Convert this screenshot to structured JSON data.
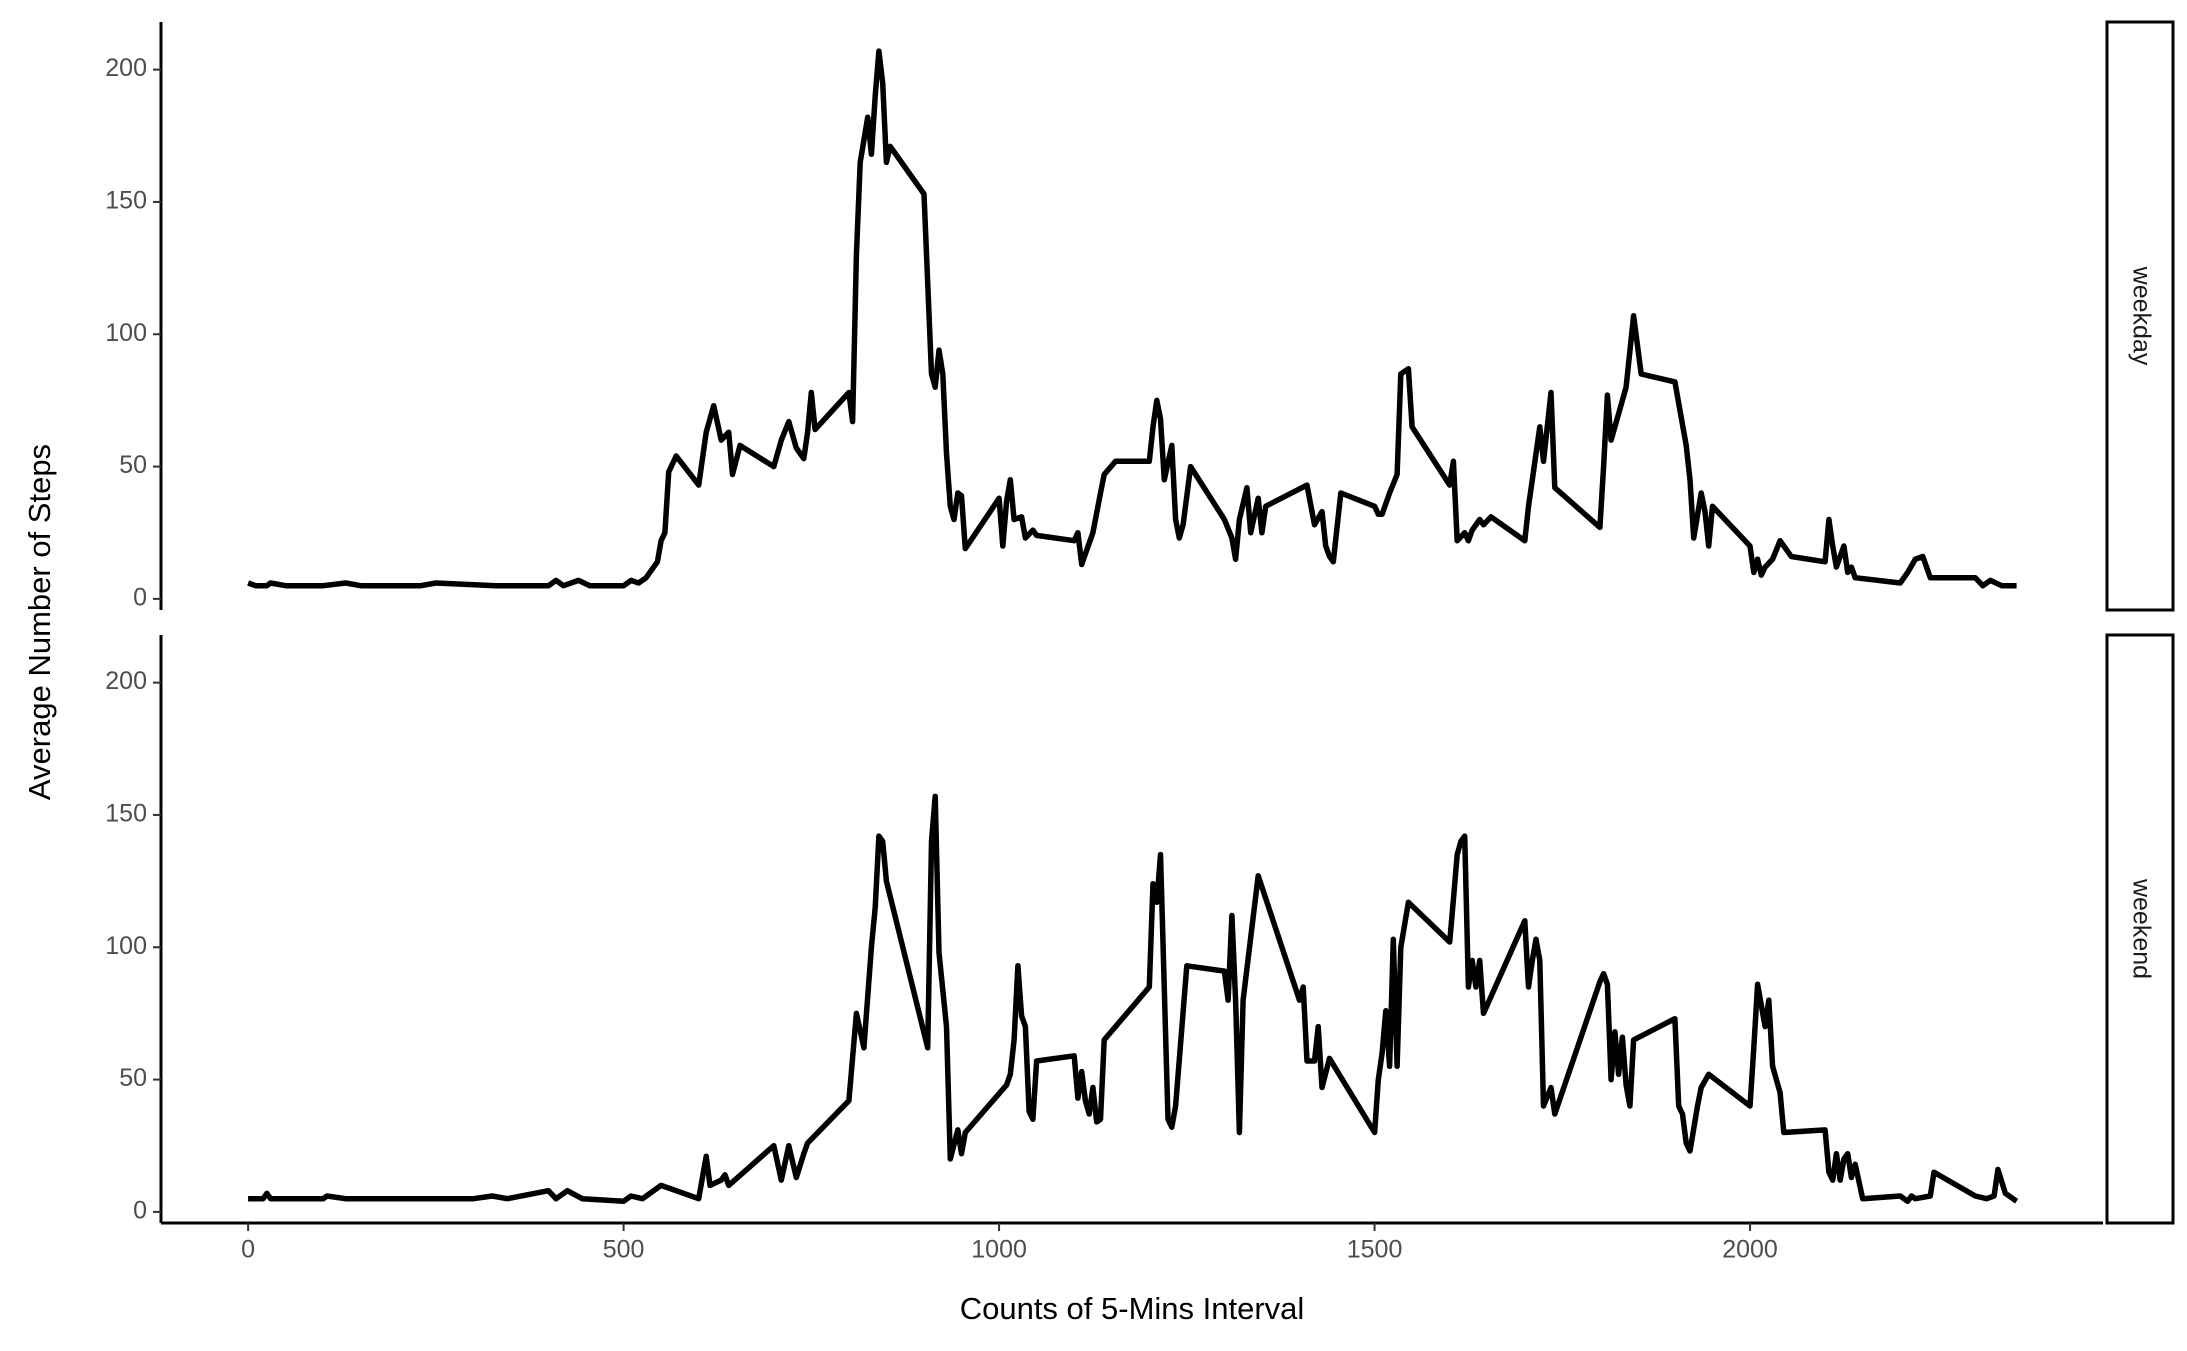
{
  "chart_data": {
    "type": "line",
    "x_label": "Counts of 5-Mins Interval",
    "y_label": "Average Number of Steps",
    "xlim": [
      -116,
      2470
    ],
    "xticks": [
      0,
      500,
      1000,
      1500,
      2000
    ],
    "ylim": [
      -4.2,
      218
    ],
    "yticks": [
      0,
      50,
      100,
      150,
      200
    ],
    "series": [
      {
        "name": "weekday",
        "color": "#000000",
        "x": [
          0,
          10,
          25,
          30,
          50,
          100,
          130,
          150,
          200,
          230,
          250,
          330,
          345,
          400,
          410,
          420,
          440,
          455,
          500,
          510,
          520,
          530,
          545,
          550,
          555,
          560,
          570,
          600,
          610,
          620,
          630,
          640,
          645,
          655,
          700,
          710,
          720,
          730,
          740,
          745,
          750,
          755,
          800,
          805,
          810,
          815,
          825,
          830,
          835,
          840,
          845,
          850,
          855,
          900,
          910,
          915,
          920,
          925,
          930,
          935,
          940,
          945,
          950,
          955,
          1000,
          1005,
          1010,
          1015,
          1020,
          1030,
          1035,
          1045,
          1050,
          1100,
          1105,
          1110,
          1115,
          1125,
          1135,
          1140,
          1155,
          1200,
          1205,
          1210,
          1215,
          1220,
          1230,
          1235,
          1240,
          1245,
          1255,
          1300,
          1310,
          1315,
          1320,
          1330,
          1335,
          1345,
          1350,
          1355,
          1410,
          1420,
          1430,
          1435,
          1440,
          1445,
          1455,
          1500,
          1505,
          1510,
          1520,
          1530,
          1535,
          1545,
          1550,
          1600,
          1605,
          1610,
          1620,
          1625,
          1630,
          1640,
          1645,
          1655,
          1700,
          1705,
          1710,
          1720,
          1725,
          1735,
          1740,
          1800,
          1805,
          1810,
          1815,
          1830,
          1835,
          1845,
          1855,
          1900,
          1915,
          1920,
          1925,
          1935,
          1940,
          1945,
          1950,
          2000,
          2005,
          2010,
          2015,
          2020,
          2030,
          2040,
          2050,
          2055,
          2100,
          2105,
          2110,
          2115,
          2125,
          2130,
          2135,
          2140,
          2200,
          2210,
          2220,
          2230,
          2240,
          2300,
          2310,
          2320,
          2335,
          2355
        ],
        "values": [
          6,
          5,
          5,
          6,
          5,
          5,
          6,
          5,
          5,
          5,
          6,
          5,
          5,
          5,
          7,
          5,
          7,
          5,
          5,
          7,
          6,
          8,
          14,
          22,
          25,
          48,
          54,
          43,
          63,
          73,
          60,
          63,
          47,
          58,
          50,
          60,
          67,
          57,
          53,
          63,
          78,
          64,
          78,
          67,
          130,
          165,
          182,
          168,
          190,
          207,
          195,
          165,
          171,
          153,
          85,
          80,
          94,
          85,
          55,
          35,
          30,
          40,
          39,
          19,
          38,
          20,
          37,
          45,
          30,
          31,
          23,
          26,
          24,
          22,
          25,
          13,
          17,
          25,
          40,
          47,
          52,
          52,
          65,
          75,
          68,
          45,
          58,
          30,
          23,
          28,
          50,
          30,
          23,
          15,
          30,
          42,
          25,
          38,
          25,
          35,
          43,
          28,
          33,
          20,
          16,
          14,
          40,
          35,
          32,
          32,
          40,
          47,
          85,
          87,
          65,
          43,
          52,
          22,
          25,
          22,
          26,
          30,
          28,
          31,
          22,
          35,
          45,
          65,
          52,
          78,
          42,
          27,
          50,
          77,
          60,
          75,
          80,
          107,
          85,
          82,
          58,
          45,
          23,
          40,
          33,
          20,
          35,
          20,
          10,
          15,
          9,
          12,
          15,
          22,
          18,
          16,
          14,
          30,
          20,
          12,
          20,
          10,
          12,
          8,
          6,
          10,
          15,
          16,
          8,
          8,
          5,
          7,
          5,
          5
        ]
      },
      {
        "name": "weekend",
        "color": "#000000",
        "x": [
          0,
          20,
          25,
          30,
          100,
          105,
          130,
          200,
          300,
          325,
          345,
          400,
          410,
          425,
          445,
          500,
          510,
          525,
          535,
          550,
          600,
          610,
          615,
          630,
          635,
          640,
          700,
          710,
          720,
          730,
          740,
          745,
          800,
          810,
          820,
          830,
          835,
          840,
          845,
          850,
          905,
          910,
          915,
          920,
          930,
          935,
          945,
          950,
          955,
          1010,
          1015,
          1020,
          1025,
          1030,
          1035,
          1040,
          1045,
          1050,
          1100,
          1105,
          1110,
          1115,
          1120,
          1125,
          1130,
          1135,
          1140,
          1200,
          1205,
          1210,
          1215,
          1225,
          1230,
          1235,
          1250,
          1300,
          1305,
          1310,
          1315,
          1320,
          1325,
          1345,
          1400,
          1405,
          1410,
          1420,
          1425,
          1430,
          1440,
          1500,
          1505,
          1510,
          1515,
          1520,
          1525,
          1530,
          1535,
          1545,
          1600,
          1605,
          1610,
          1615,
          1620,
          1625,
          1630,
          1635,
          1640,
          1645,
          1700,
          1705,
          1710,
          1715,
          1720,
          1725,
          1735,
          1740,
          1800,
          1805,
          1810,
          1815,
          1820,
          1825,
          1830,
          1835,
          1840,
          1845,
          1900,
          1905,
          1910,
          1915,
          1920,
          1930,
          1935,
          1945,
          2000,
          2005,
          2010,
          2020,
          2025,
          2030,
          2040,
          2045,
          2100,
          2105,
          2110,
          2115,
          2120,
          2125,
          2130,
          2135,
          2140,
          2150,
          2200,
          2210,
          2215,
          2220,
          2240,
          2245,
          2300,
          2315,
          2325,
          2330,
          2340,
          2355
        ],
        "values": [
          5,
          5,
          7,
          5,
          5,
          6,
          5,
          5,
          5,
          6,
          5,
          8,
          5,
          8,
          5,
          4,
          6,
          5,
          7,
          10,
          5,
          21,
          10,
          12,
          14,
          10,
          25,
          12,
          25,
          13,
          22,
          26,
          42,
          75,
          62,
          100,
          115,
          142,
          140,
          125,
          62,
          140,
          157,
          98,
          70,
          20,
          31,
          22,
          30,
          48,
          52,
          65,
          93,
          74,
          70,
          38,
          35,
          57,
          59,
          43,
          53,
          42,
          37,
          47,
          34,
          35,
          65,
          85,
          124,
          117,
          135,
          35,
          32,
          40,
          93,
          91,
          80,
          112,
          80,
          30,
          80,
          127,
          80,
          85,
          57,
          57,
          70,
          47,
          58,
          30,
          50,
          60,
          76,
          55,
          103,
          55,
          100,
          117,
          102,
          118,
          135,
          140,
          142,
          85,
          95,
          85,
          95,
          75,
          110,
          85,
          95,
          103,
          95,
          40,
          47,
          37,
          87,
          90,
          86,
          50,
          68,
          52,
          66,
          48,
          40,
          65,
          73,
          40,
          37,
          26,
          23,
          40,
          47,
          52,
          40,
          62,
          86,
          70,
          80,
          55,
          45,
          30,
          31,
          15,
          12,
          22,
          12,
          20,
          22,
          13,
          18,
          5,
          6,
          4,
          6,
          5,
          6,
          15,
          6,
          5,
          6,
          16,
          7,
          4
        ]
      }
    ]
  }
}
